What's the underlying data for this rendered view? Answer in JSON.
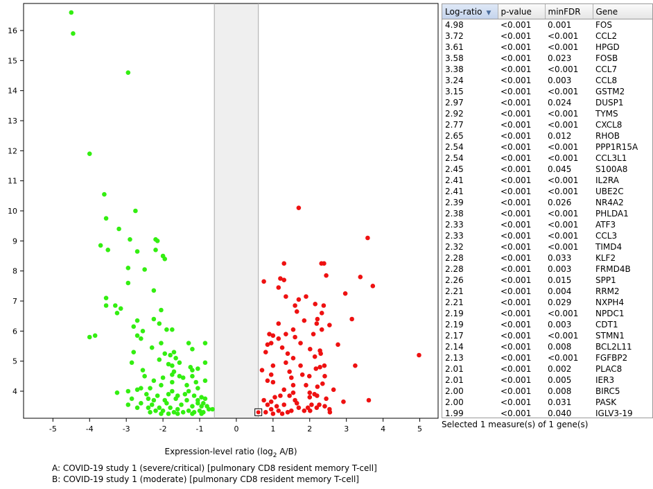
{
  "chart_data": {
    "type": "scatter",
    "xlabel": "Expression-level ratio (log",
    "xlabel_sub": "2",
    "xlabel_tail": " A/B)",
    "xlim": [
      -5.8,
      5.5
    ],
    "ylim": [
      3.1,
      16.9
    ],
    "x_ticks": [
      -5,
      -4,
      -3,
      -2,
      -1,
      0,
      1,
      2,
      3,
      4,
      5
    ],
    "y_ticks": [
      4,
      5,
      6,
      7,
      8,
      9,
      10,
      11,
      12,
      13,
      14,
      15,
      16
    ],
    "shaded_band": [
      -0.6,
      0.6
    ],
    "colors": {
      "down": "#33ee11",
      "up": "#ee1111",
      "band": "#efefef"
    },
    "selected_point": [
      0.6,
      3.3
    ],
    "series": [
      {
        "color": "down",
        "points": [
          [
            -4.5,
            16.6
          ],
          [
            -4.45,
            15.9
          ],
          [
            -2.95,
            14.6
          ],
          [
            -4,
            11.9
          ],
          [
            -3.6,
            10.55
          ],
          [
            -2.75,
            10
          ],
          [
            -3.55,
            9.75
          ],
          [
            -3.2,
            9.4
          ],
          [
            -2.2,
            9.05
          ],
          [
            -2.15,
            9
          ],
          [
            -2.9,
            9.05
          ],
          [
            -3.7,
            8.85
          ],
          [
            -3.5,
            8.7
          ],
          [
            -2.7,
            8.65
          ],
          [
            -2.2,
            8.7
          ],
          [
            -2,
            8.5
          ],
          [
            -1.95,
            8.4
          ],
          [
            -2.95,
            8.1
          ],
          [
            -2.5,
            8.05
          ],
          [
            -2.95,
            7.6
          ],
          [
            -2.25,
            7.35
          ],
          [
            -3.55,
            7.1
          ],
          [
            -3.55,
            6.85
          ],
          [
            -3.3,
            6.85
          ],
          [
            -3.15,
            6.75
          ],
          [
            -3.25,
            6.6
          ],
          [
            -2.05,
            6.7
          ],
          [
            -2.25,
            6.4
          ],
          [
            -2.7,
            6.35
          ],
          [
            -2.1,
            6.25
          ],
          [
            -2.8,
            6.15
          ],
          [
            -2.55,
            6
          ],
          [
            -1.9,
            6.05
          ],
          [
            -1.75,
            6.05
          ],
          [
            -2.7,
            5.85
          ],
          [
            -2.6,
            5.75
          ],
          [
            -3.85,
            5.85
          ],
          [
            -4,
            5.8
          ],
          [
            -2.05,
            5.6
          ],
          [
            -1.3,
            5.6
          ],
          [
            -0.85,
            5.6
          ],
          [
            -1.7,
            5.3
          ],
          [
            -1.8,
            5.2
          ],
          [
            -1.65,
            5.1
          ],
          [
            -2.8,
            5.3
          ],
          [
            -2.3,
            5.45
          ],
          [
            -1.95,
            5.25
          ],
          [
            -1.2,
            5.4
          ],
          [
            -2.1,
            5.05
          ],
          [
            -1.55,
            4.95
          ],
          [
            -2.85,
            4.95
          ],
          [
            -1.85,
            4.9
          ],
          [
            -1.75,
            4.85
          ],
          [
            -1.25,
            4.8
          ],
          [
            -1.05,
            4.75
          ],
          [
            -1.2,
            4.7
          ],
          [
            -1.7,
            4.65
          ],
          [
            -0.85,
            4.95
          ],
          [
            -1.75,
            4.55
          ],
          [
            -2.5,
            4.5
          ],
          [
            -2,
            4.45
          ],
          [
            -1.55,
            4.5
          ],
          [
            -1.45,
            4.45
          ],
          [
            -1.2,
            4.5
          ],
          [
            -0.85,
            4.35
          ],
          [
            -2.25,
            4.35
          ],
          [
            -1.75,
            4.3
          ],
          [
            -2.05,
            4.2
          ],
          [
            -1.35,
            4.2
          ],
          [
            -1.05,
            4.1
          ],
          [
            -2.35,
            4.1
          ],
          [
            -2.6,
            4.1
          ],
          [
            -2.7,
            4.05
          ],
          [
            -2.95,
            4
          ],
          [
            -3.25,
            3.95
          ],
          [
            -2.45,
            3.9
          ],
          [
            -2.15,
            3.85
          ],
          [
            -1.85,
            3.9
          ],
          [
            -1.6,
            3.85
          ],
          [
            -1.4,
            3.9
          ],
          [
            -1.15,
            3.85
          ],
          [
            -0.95,
            3.8
          ],
          [
            -2.85,
            3.75
          ],
          [
            -2.25,
            3.7
          ],
          [
            -1.95,
            3.7
          ],
          [
            -1.65,
            3.75
          ],
          [
            -1.35,
            3.7
          ],
          [
            -1.05,
            3.6
          ],
          [
            -0.85,
            3.75
          ],
          [
            -2.6,
            3.6
          ],
          [
            -2.95,
            3.55
          ],
          [
            -2.3,
            3.55
          ],
          [
            -1.9,
            3.6
          ],
          [
            -1.5,
            3.55
          ],
          [
            -1.2,
            3.5
          ],
          [
            -0.95,
            3.5
          ],
          [
            -2.7,
            3.45
          ],
          [
            -2.4,
            3.45
          ],
          [
            -2.1,
            3.45
          ],
          [
            -1.8,
            3.45
          ],
          [
            -1.6,
            3.4
          ],
          [
            -1.3,
            3.35
          ],
          [
            -1.0,
            3.35
          ],
          [
            -0.75,
            3.4
          ],
          [
            -0.65,
            3.4
          ],
          [
            -2.2,
            3.35
          ],
          [
            -2.0,
            3.35
          ],
          [
            -1.7,
            3.3
          ],
          [
            -1.45,
            3.3
          ],
          [
            -1.15,
            3.3
          ],
          [
            -0.9,
            3.3
          ],
          [
            -2.35,
            3.3
          ],
          [
            -1.85,
            3.25
          ],
          [
            -1.2,
            3.25
          ],
          [
            -0.95,
            3.25
          ],
          [
            -2.05,
            3.25
          ],
          [
            -1.6,
            3.25
          ],
          [
            -0.8,
            3.5
          ],
          [
            -1.05,
            3.7
          ],
          [
            -2.4,
            3.75
          ],
          [
            -1.3,
            4.0
          ],
          [
            -2.55,
            4.7
          ],
          [
            -1.1,
            4.3
          ],
          [
            -0.9,
            3.6
          ],
          [
            -1.75,
            4.0
          ]
        ]
      },
      {
        "color": "up",
        "points": [
          [
            4.98,
            5.2
          ],
          [
            3.72,
            7.5
          ],
          [
            3.61,
            3.7
          ],
          [
            3.58,
            9.1
          ],
          [
            3.38,
            7.8
          ],
          [
            3.24,
            4.85
          ],
          [
            3.15,
            6.4
          ],
          [
            2.97,
            7.25
          ],
          [
            2.92,
            3.65
          ],
          [
            2.77,
            5.55
          ],
          [
            2.65,
            4.05
          ],
          [
            2.54,
            3.4
          ],
          [
            2.54,
            6.2
          ],
          [
            2.45,
            7.85
          ],
          [
            2.41,
            4.5
          ],
          [
            2.41,
            3.5
          ],
          [
            2.39,
            8.25
          ],
          [
            2.38,
            6.85
          ],
          [
            2.33,
            6.6
          ],
          [
            2.33,
            6.05
          ],
          [
            2.32,
            8.25
          ],
          [
            2.28,
            5.35
          ],
          [
            2.28,
            4.8
          ],
          [
            2.26,
            3.55
          ],
          [
            2.21,
            6.4
          ],
          [
            2.21,
            4.15
          ],
          [
            2.19,
            3.45
          ],
          [
            2.19,
            6.25
          ],
          [
            2.17,
            4.75
          ],
          [
            2.14,
            5.15
          ],
          [
            2.13,
            3.9
          ],
          [
            2.01,
            5.4
          ],
          [
            2.01,
            3.35
          ],
          [
            2,
            3.95
          ],
          [
            2,
            3.8
          ],
          [
            1.99,
            4.5
          ],
          [
            1.7,
            10.1
          ],
          [
            1.7,
            7.05
          ],
          [
            1.9,
            7.15
          ],
          [
            1.65,
            6.65
          ],
          [
            1.85,
            6.35
          ],
          [
            1.55,
            6.05
          ],
          [
            1.6,
            5.8
          ],
          [
            1.75,
            5.6
          ],
          [
            1.55,
            5.1
          ],
          [
            1.35,
            4.95
          ],
          [
            1.45,
            4.65
          ],
          [
            1.5,
            4.45
          ],
          [
            1.55,
            4.2
          ],
          [
            1.55,
            3.95
          ],
          [
            1.45,
            3.85
          ],
          [
            1.6,
            3.7
          ],
          [
            1.65,
            3.6
          ],
          [
            1.3,
            3.55
          ],
          [
            1.5,
            3.35
          ],
          [
            1.4,
            3.3
          ],
          [
            1.25,
            3.25
          ],
          [
            1.15,
            3.35
          ],
          [
            1.1,
            3.5
          ],
          [
            0.95,
            3.65
          ],
          [
            0.85,
            3.55
          ],
          [
            0.75,
            3.7
          ],
          [
            0.95,
            3.4
          ],
          [
            0.8,
            3.3
          ],
          [
            1.0,
            3.25
          ],
          [
            1.05,
            3.8
          ],
          [
            1.2,
            3.85
          ],
          [
            1.3,
            4.05
          ],
          [
            1.0,
            4.3
          ],
          [
            0.85,
            4.35
          ],
          [
            0.95,
            4.55
          ],
          [
            0.7,
            4.7
          ],
          [
            1.0,
            4.85
          ],
          [
            1.25,
            5.45
          ],
          [
            0.8,
            5.3
          ],
          [
            0.95,
            5.6
          ],
          [
            0.85,
            5.55
          ],
          [
            1.15,
            5.75
          ],
          [
            1.0,
            5.85
          ],
          [
            1.15,
            6.25
          ],
          [
            1.35,
            5.9
          ],
          [
            1.35,
            7.15
          ],
          [
            1.3,
            8.25
          ],
          [
            1.2,
            7.75
          ],
          [
            1.3,
            7.7
          ],
          [
            1.15,
            7.45
          ],
          [
            0.75,
            7.65
          ],
          [
            0.9,
            5.9
          ],
          [
            1.85,
            3.35
          ],
          [
            2.05,
            3.55
          ],
          [
            2.2,
            3.85
          ],
          [
            1.9,
            4.2
          ],
          [
            1.95,
            3.45
          ],
          [
            2.3,
            5.25
          ],
          [
            2.4,
            4.85
          ],
          [
            2.35,
            4.25
          ],
          [
            2.45,
            3.75
          ],
          [
            2.55,
            3.3
          ],
          [
            1.75,
            4.85
          ],
          [
            1.4,
            5.25
          ],
          [
            1.6,
            6.85
          ],
          [
            2.15,
            6.9
          ],
          [
            1.8,
            4.55
          ],
          [
            1.7,
            3.45
          ],
          [
            2.1,
            5.9
          ]
        ]
      }
    ]
  },
  "table": {
    "columns": [
      "Log-ratio",
      "p-value",
      "minFDR",
      "Gene"
    ],
    "rows": [
      [
        "4.98",
        "<0.001",
        "0.001",
        "FOS"
      ],
      [
        "3.72",
        "<0.001",
        "<0.001",
        "CCL2"
      ],
      [
        "3.61",
        "<0.001",
        "<0.001",
        "HPGD"
      ],
      [
        "3.58",
        "<0.001",
        "0.023",
        "FOSB"
      ],
      [
        "3.38",
        "<0.001",
        "<0.001",
        "CCL7"
      ],
      [
        "3.24",
        "<0.001",
        "0.003",
        "CCL8"
      ],
      [
        "3.15",
        "<0.001",
        "<0.001",
        "GSTM2"
      ],
      [
        "2.97",
        "<0.001",
        "0.024",
        "DUSP1"
      ],
      [
        "2.92",
        "<0.001",
        "<0.001",
        "TYMS"
      ],
      [
        "2.77",
        "<0.001",
        "<0.001",
        "CXCL8"
      ],
      [
        "2.65",
        "<0.001",
        "0.012",
        "RHOB"
      ],
      [
        "2.54",
        "<0.001",
        "<0.001",
        "PPP1R15A"
      ],
      [
        "2.54",
        "<0.001",
        "<0.001",
        "CCL3L1"
      ],
      [
        "2.45",
        "<0.001",
        "0.045",
        "S100A8"
      ],
      [
        "2.41",
        "<0.001",
        "<0.001",
        "IL2RA"
      ],
      [
        "2.41",
        "<0.001",
        "<0.001",
        "UBE2C"
      ],
      [
        "2.39",
        "<0.001",
        "0.026",
        "NR4A2"
      ],
      [
        "2.38",
        "<0.001",
        "<0.001",
        "PHLDA1"
      ],
      [
        "2.33",
        "<0.001",
        "<0.001",
        "ATF3"
      ],
      [
        "2.33",
        "<0.001",
        "<0.001",
        "CCL3"
      ],
      [
        "2.32",
        "<0.001",
        "<0.001",
        "TIMD4"
      ],
      [
        "2.28",
        "<0.001",
        "0.033",
        "KLF2"
      ],
      [
        "2.28",
        "<0.001",
        "0.003",
        "FRMD4B"
      ],
      [
        "2.26",
        "<0.001",
        "0.015",
        "SPP1"
      ],
      [
        "2.21",
        "<0.001",
        "0.004",
        "RRM2"
      ],
      [
        "2.21",
        "<0.001",
        "0.029",
        "NXPH4"
      ],
      [
        "2.19",
        "<0.001",
        "<0.001",
        "NPDC1"
      ],
      [
        "2.19",
        "<0.001",
        "0.003",
        "CDT1"
      ],
      [
        "2.17",
        "<0.001",
        "<0.001",
        "STMN1"
      ],
      [
        "2.14",
        "<0.001",
        "0.008",
        "BCL2L11"
      ],
      [
        "2.13",
        "<0.001",
        "<0.001",
        "FGFBP2"
      ],
      [
        "2.01",
        "<0.001",
        "0.002",
        "PLAC8"
      ],
      [
        "2.01",
        "<0.001",
        "0.005",
        "IER3"
      ],
      [
        "2.00",
        "<0.001",
        "0.008",
        "BIRC5"
      ],
      [
        "2.00",
        "<0.001",
        "0.031",
        "PASK"
      ],
      [
        "1.99",
        "<0.001",
        "0.040",
        "IGLV3-19"
      ]
    ]
  },
  "status_text": "Selected 1 measure(s) of 1 gene(s)",
  "caption_a": "A: COVID-19 study 1 (severe/critical) [pulmonary CD8 resident memory T-cell]",
  "caption_b": "B: COVID-19 study 1 (moderate) [pulmonary CD8 resident memory T-cell]"
}
